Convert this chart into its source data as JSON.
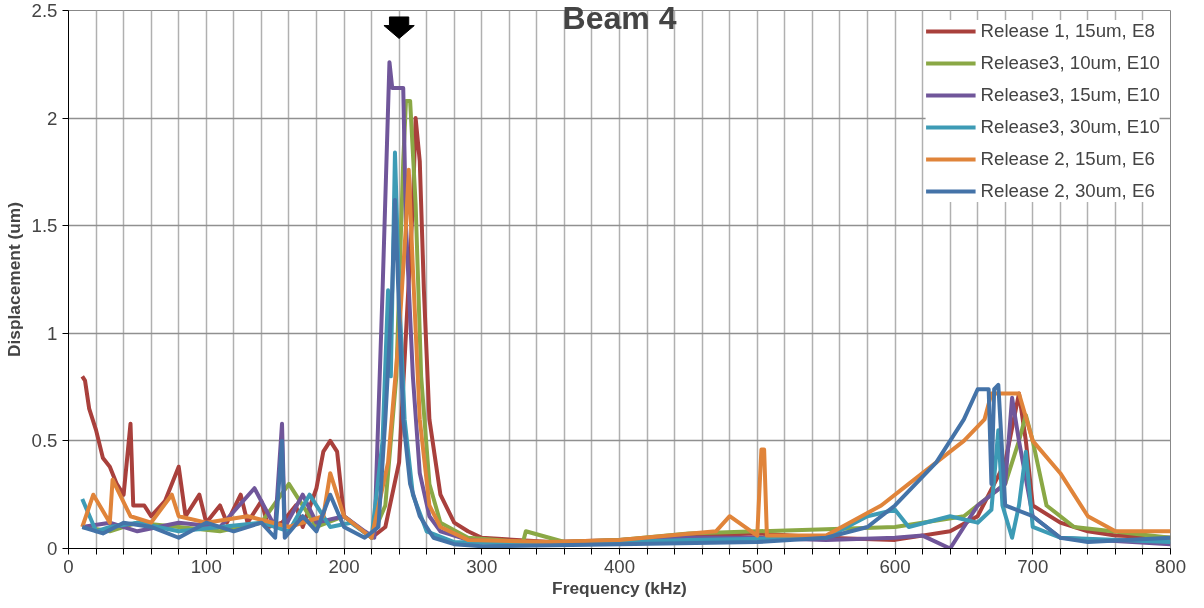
{
  "chart_data": {
    "type": "line",
    "title": "Beam 4",
    "xlabel": "Frequency (kHz)",
    "ylabel": "Displacement (um)",
    "xlim": [
      0,
      800
    ],
    "ylim": [
      0,
      2.5
    ],
    "xticks": [
      0,
      {
        "value": 20,
        "label": null
      },
      {
        "value": 40,
        "label": null
      },
      {
        "value": 60,
        "label": null
      },
      {
        "value": 80,
        "label": null
      },
      100,
      {
        "value": 120,
        "label": null
      },
      {
        "value": 140,
        "label": null
      },
      {
        "value": 160,
        "label": null
      },
      {
        "value": 180,
        "label": null
      },
      200,
      {
        "value": 220,
        "label": null
      },
      {
        "value": 240,
        "label": null
      },
      {
        "value": 260,
        "label": null
      },
      {
        "value": 280,
        "label": null
      },
      300,
      {
        "value": 320,
        "label": null
      },
      {
        "value": 340,
        "label": null
      },
      {
        "value": 360,
        "label": null
      },
      {
        "value": 380,
        "label": null
      },
      400,
      {
        "value": 420,
        "label": null
      },
      {
        "value": 440,
        "label": null
      },
      {
        "value": 460,
        "label": null
      },
      {
        "value": 480,
        "label": null
      },
      500,
      {
        "value": 520,
        "label": null
      },
      {
        "value": 540,
        "label": null
      },
      {
        "value": 560,
        "label": null
      },
      {
        "value": 580,
        "label": null
      },
      600,
      {
        "value": 620,
        "label": null
      },
      {
        "value": 640,
        "label": null
      },
      {
        "value": 660,
        "label": null
      },
      {
        "value": 680,
        "label": null
      },
      700,
      {
        "value": 720,
        "label": null
      },
      {
        "value": 740,
        "label": null
      },
      {
        "value": 760,
        "label": null
      },
      {
        "value": 780,
        "label": null
      },
      800
    ],
    "yticks": [
      0,
      0.5,
      1,
      1.5,
      2,
      2.5
    ],
    "grid": true,
    "legend": "top right",
    "marker": "none",
    "line_style": "solid",
    "series": [
      {
        "name": "Release 1, 15um, E8",
        "color": "#a9403c",
        "x": [
          10,
          12,
          15,
          20,
          25,
          30,
          35,
          40,
          45,
          47,
          55,
          60,
          70,
          80,
          85,
          95,
          100,
          110,
          115,
          125,
          130,
          140,
          145,
          155,
          165,
          170,
          180,
          185,
          190,
          195,
          200,
          210,
          220,
          230,
          240,
          245,
          250,
          252,
          255,
          258,
          262,
          270,
          280,
          290,
          300,
          350,
          400,
          450,
          500,
          550,
          600,
          640,
          660,
          680,
          690,
          695,
          700,
          720,
          740,
          760,
          800
        ],
        "values": [
          0.8,
          0.78,
          0.65,
          0.55,
          0.42,
          0.38,
          0.3,
          0.25,
          0.58,
          0.2,
          0.2,
          0.15,
          0.22,
          0.38,
          0.15,
          0.25,
          0.12,
          0.2,
          0.12,
          0.25,
          0.12,
          0.22,
          0.1,
          0.12,
          0.2,
          0.1,
          0.28,
          0.45,
          0.5,
          0.45,
          0.15,
          0.1,
          0.05,
          0.1,
          0.4,
          1.0,
          1.6,
          2.0,
          1.8,
          1.2,
          0.6,
          0.25,
          0.12,
          0.08,
          0.05,
          0.03,
          0.04,
          0.06,
          0.07,
          0.05,
          0.04,
          0.08,
          0.15,
          0.4,
          0.72,
          0.5,
          0.2,
          0.12,
          0.08,
          0.06,
          0.05
        ]
      },
      {
        "name": "Release3, 10um, E10",
        "color": "#8aa845",
        "x": [
          10,
          30,
          50,
          80,
          110,
          140,
          160,
          180,
          200,
          220,
          230,
          238,
          243,
          245,
          248,
          252,
          256,
          262,
          270,
          290,
          330,
          332,
          360,
          400,
          450,
          500,
          550,
          600,
          650,
          680,
          690,
          695,
          700,
          710,
          730,
          800
        ],
        "values": [
          0.1,
          0.08,
          0.12,
          0.1,
          0.08,
          0.12,
          0.3,
          0.1,
          0.15,
          0.05,
          0.2,
          0.8,
          1.8,
          2.08,
          2.08,
          1.6,
          0.8,
          0.3,
          0.12,
          0.05,
          0.03,
          0.08,
          0.03,
          0.04,
          0.07,
          0.08,
          0.09,
          0.1,
          0.15,
          0.3,
          0.5,
          0.62,
          0.5,
          0.2,
          0.1,
          0.05
        ]
      },
      {
        "name": "Release3, 15um, E10",
        "color": "#70569a",
        "x": [
          10,
          30,
          50,
          80,
          110,
          135,
          150,
          155,
          157,
          170,
          180,
          200,
          215,
          222,
          228,
          233,
          235,
          237,
          243,
          245,
          250,
          255,
          262,
          270,
          290,
          350,
          400,
          450,
          500,
          550,
          600,
          620,
          640,
          660,
          680,
          685,
          690,
          700,
          720,
          800
        ],
        "values": [
          0.1,
          0.12,
          0.08,
          0.12,
          0.1,
          0.28,
          0.1,
          0.58,
          0.1,
          0.25,
          0.12,
          0.15,
          0.08,
          0.05,
          1.2,
          2.26,
          2.14,
          2.14,
          2.14,
          1.5,
          0.8,
          0.35,
          0.15,
          0.08,
          0.04,
          0.02,
          0.03,
          0.05,
          0.05,
          0.04,
          0.05,
          0.06,
          0.0,
          0.2,
          0.3,
          0.7,
          0.5,
          0.15,
          0.05,
          0.02
        ]
      },
      {
        "name": "Release3, 30um, E10",
        "color": "#3d9bb5",
        "x": [
          10,
          20,
          30,
          50,
          80,
          110,
          140,
          160,
          175,
          190,
          205,
          220,
          228,
          232,
          234,
          237,
          240,
          244,
          250,
          260,
          280,
          350,
          450,
          550,
          580,
          600,
          610,
          640,
          660,
          670,
          675,
          678,
          685,
          690,
          695,
          700,
          720,
          800
        ],
        "values": [
          0.23,
          0.08,
          0.1,
          0.12,
          0.08,
          0.1,
          0.12,
          0.08,
          0.25,
          0.1,
          0.12,
          0.05,
          0.5,
          1.2,
          0.8,
          1.84,
          1.2,
          0.6,
          0.25,
          0.08,
          0.03,
          0.02,
          0.04,
          0.05,
          0.15,
          0.18,
          0.1,
          0.15,
          0.12,
          0.18,
          0.55,
          0.2,
          0.05,
          0.2,
          0.45,
          0.1,
          0.05,
          0.03
        ]
      },
      {
        "name": "Release 2, 15um, E6",
        "color": "#e0843a",
        "x": [
          10,
          18,
          30,
          32,
          45,
          60,
          75,
          80,
          100,
          130,
          160,
          185,
          190,
          200,
          220,
          232,
          240,
          245,
          247,
          250,
          255,
          262,
          270,
          290,
          350,
          400,
          470,
          480,
          500,
          503,
          505,
          507,
          550,
          590,
          610,
          630,
          650,
          665,
          670,
          690,
          700,
          720,
          740,
          760,
          800
        ],
        "values": [
          0.1,
          0.25,
          0.12,
          0.32,
          0.15,
          0.12,
          0.25,
          0.15,
          0.12,
          0.15,
          0.1,
          0.15,
          0.35,
          0.15,
          0.05,
          0.4,
          1.0,
          1.5,
          1.76,
          1.3,
          0.6,
          0.2,
          0.1,
          0.04,
          0.03,
          0.04,
          0.08,
          0.15,
          0.06,
          0.46,
          0.46,
          0.06,
          0.06,
          0.2,
          0.3,
          0.4,
          0.5,
          0.6,
          0.72,
          0.72,
          0.5,
          0.35,
          0.15,
          0.08,
          0.08
        ]
      },
      {
        "name": "Release 2, 30um, E6",
        "color": "#4473a8",
        "x": [
          10,
          25,
          40,
          60,
          80,
          100,
          120,
          140,
          150,
          155,
          157,
          170,
          180,
          190,
          200,
          215,
          225,
          230,
          235,
          237,
          240,
          243,
          248,
          255,
          265,
          280,
          300,
          400,
          500,
          550,
          580,
          600,
          630,
          650,
          660,
          668,
          670,
          672,
          675,
          680,
          700,
          720,
          740,
          800
        ],
        "values": [
          0.1,
          0.07,
          0.12,
          0.1,
          0.05,
          0.12,
          0.08,
          0.12,
          0.05,
          0.5,
          0.05,
          0.15,
          0.08,
          0.25,
          0.1,
          0.05,
          0.1,
          0.6,
          1.2,
          1.62,
          1.1,
          0.6,
          0.3,
          0.15,
          0.05,
          0.02,
          0.01,
          0.02,
          0.03,
          0.05,
          0.1,
          0.2,
          0.4,
          0.6,
          0.74,
          0.74,
          0.3,
          0.74,
          0.76,
          0.2,
          0.15,
          0.05,
          0.03,
          0.05
        ]
      }
    ]
  }
}
